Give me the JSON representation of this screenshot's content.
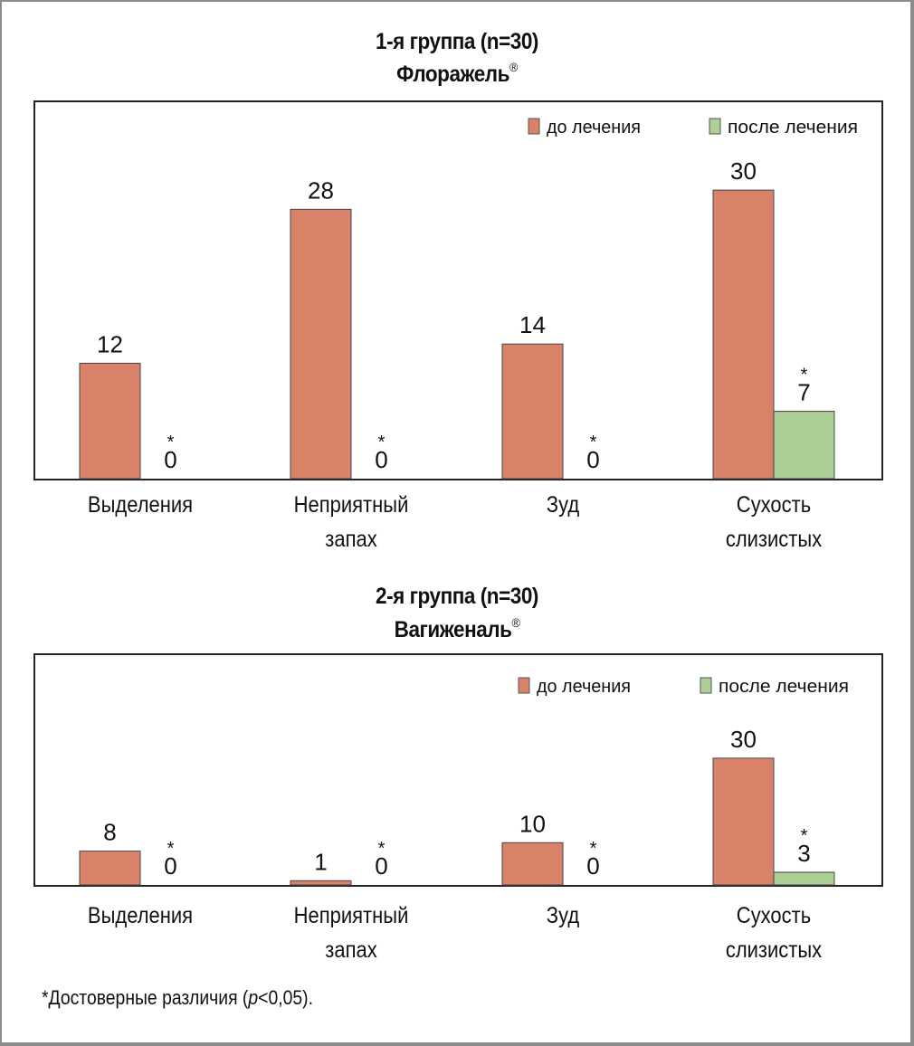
{
  "chart_data": [
    {
      "type": "bar",
      "title": "1-я группа (n=30)",
      "subtitle": "Флоражель®",
      "categories": [
        "Выделения",
        "Неприятный запах",
        "Зуд",
        "Сухость слизистых"
      ],
      "category_lines": [
        [
          "Выделения"
        ],
        [
          "Неприятный",
          "запах"
        ],
        [
          "Зуд"
        ],
        [
          "Сухость",
          "слизистых"
        ]
      ],
      "series": [
        {
          "name": "до лечения",
          "color": "#d9826a",
          "values": [
            12,
            28,
            14,
            30
          ],
          "significant": [
            false,
            false,
            false,
            false
          ]
        },
        {
          "name": "после лечения",
          "color": "#abcf94",
          "values": [
            0,
            0,
            0,
            7
          ],
          "significant": [
            true,
            true,
            true,
            true
          ]
        }
      ],
      "ylim": [
        0,
        30
      ],
      "xlabel": "",
      "ylabel": "",
      "grid": false,
      "legend": "top-right",
      "significance_marker": "*"
    },
    {
      "type": "bar",
      "title": "2-я группа (n=30)",
      "subtitle": "Вагиженаль®",
      "categories": [
        "Выделения",
        "Неприятный запах",
        "Зуд",
        "Сухость слизистых"
      ],
      "category_lines": [
        [
          "Выделения"
        ],
        [
          "Неприятный",
          "запах"
        ],
        [
          "Зуд"
        ],
        [
          "Сухость",
          "слизистых"
        ]
      ],
      "series": [
        {
          "name": "до лечения",
          "color": "#d9826a",
          "values": [
            8,
            1,
            10,
            30
          ],
          "significant": [
            false,
            false,
            false,
            false
          ]
        },
        {
          "name": "после лечения",
          "color": "#abcf94",
          "values": [
            0,
            0,
            0,
            3
          ],
          "significant": [
            true,
            true,
            true,
            true
          ]
        }
      ],
      "ylim": [
        0,
        30
      ],
      "xlabel": "",
      "ylabel": "",
      "grid": false,
      "legend": "top-right",
      "significance_marker": "*"
    }
  ],
  "titles": [
    {
      "line1": "1-я группа (n=30)",
      "drug": "Флоражель",
      "mark": "®"
    },
    {
      "line1": "2-я группа (n=30)",
      "drug": "Вагиженаль",
      "mark": "®"
    }
  ],
  "footnote": {
    "star": "*",
    "prefix": "Достоверные различия (",
    "p": "p",
    "suffix": "<0,05)."
  }
}
